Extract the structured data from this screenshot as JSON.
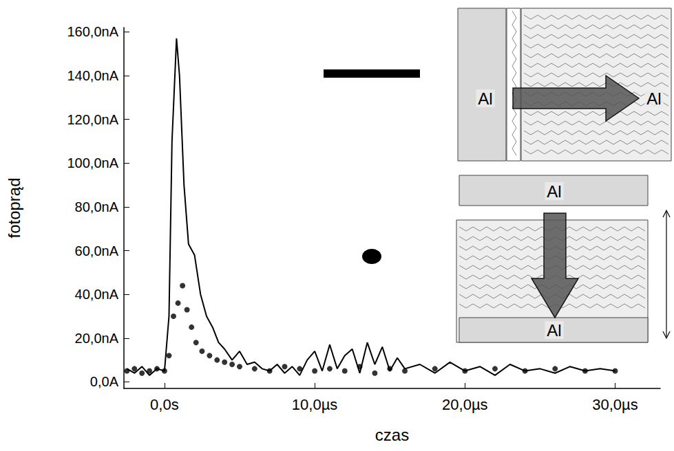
{
  "chart_data": {
    "type": "line",
    "x_label": "czas",
    "y_label": "fotoprąd",
    "xlim": [
      -2.7,
      33
    ],
    "xticks": [
      {
        "value": 0,
        "label": "0,0s"
      },
      {
        "value": 10,
        "label": "10,0µs"
      },
      {
        "value": 20,
        "label": "20,0µs"
      },
      {
        "value": 30,
        "label": "30,0µs"
      }
    ],
    "ylim": [
      -3,
      162
    ],
    "yticks": [
      {
        "value": 0,
        "label": "0,0A"
      },
      {
        "value": 20,
        "label": "20,0nA"
      },
      {
        "value": 40,
        "label": "40,0nA"
      },
      {
        "value": 60,
        "label": "60,0nA"
      },
      {
        "value": 80,
        "label": "80,0nA"
      },
      {
        "value": 100,
        "label": "100,0nA"
      },
      {
        "value": 120,
        "label": "120,0nA"
      },
      {
        "value": 140,
        "label": "140,0nA"
      },
      {
        "value": 160,
        "label": "160,0nA"
      }
    ],
    "grid": false,
    "annotations": [
      "Al",
      "Al",
      "Al",
      "Al"
    ],
    "series": [
      {
        "type": "line",
        "color": "#000000",
        "line_style": "solid",
        "x": [
          -2.5,
          -2,
          -1.5,
          -1,
          -0.5,
          0,
          0.3,
          0.5,
          0.8,
          1.0,
          1.3,
          1.6,
          2.0,
          2.4,
          2.8,
          3.2,
          3.6,
          4,
          4.5,
          5,
          5.5,
          6,
          6.5,
          7,
          7.5,
          8,
          8.5,
          9,
          9.5,
          10,
          10.5,
          11,
          11.5,
          12,
          12.5,
          13,
          13.5,
          14,
          14.5,
          15,
          15.5,
          16,
          17,
          18,
          19,
          20,
          21,
          22,
          23,
          24,
          25,
          26,
          27,
          28,
          29,
          30
        ],
        "values": [
          6,
          4,
          7,
          3,
          6,
          5,
          30,
          110,
          157,
          140,
          90,
          63,
          58,
          40,
          30,
          25,
          18,
          15,
          10,
          14,
          8,
          9,
          6,
          5,
          8,
          4,
          7,
          3,
          10,
          14,
          5,
          17,
          6,
          12,
          15,
          4,
          18,
          8,
          16,
          5,
          11,
          6,
          8,
          4,
          9,
          5,
          7,
          3,
          8,
          5,
          6,
          4,
          7,
          5,
          6,
          5
        ]
      },
      {
        "type": "scatter",
        "color": "#000000",
        "marker": "circle",
        "x": [
          -2.5,
          -2,
          -1.5,
          -1,
          -0.5,
          0,
          0.3,
          0.6,
          0.9,
          1.2,
          1.5,
          1.8,
          2.1,
          2.5,
          3,
          3.5,
          4,
          4.5,
          5,
          6,
          7,
          8,
          9,
          10,
          11,
          12,
          13,
          14,
          15,
          16,
          18,
          20,
          22,
          24,
          26,
          28,
          30
        ],
        "values": [
          5,
          6,
          4,
          5,
          6,
          5,
          12,
          30,
          36,
          44,
          33,
          25,
          18,
          14,
          12,
          10,
          9,
          8,
          7,
          6,
          5,
          7,
          6,
          5,
          6,
          5,
          7,
          4,
          6,
          5,
          6,
          5,
          6,
          5,
          6,
          5,
          5
        ]
      }
    ]
  }
}
